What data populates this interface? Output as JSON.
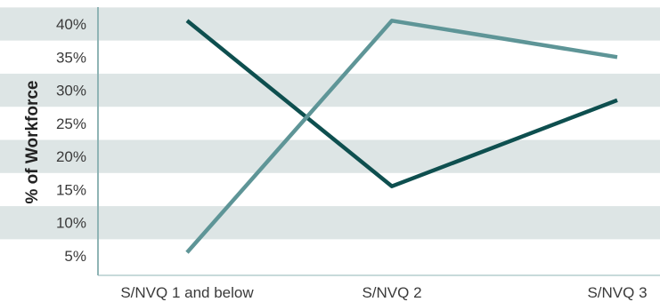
{
  "chart_data": {
    "type": "line",
    "categories": [
      "S/NVQ 1 and below",
      "S/NVQ 2",
      "S/NVQ 3"
    ],
    "series": [
      {
        "name": "",
        "color": "#0e4f4f",
        "values": [
          40.5,
          15.5,
          28.5
        ]
      },
      {
        "name": "",
        "color": "#5e9597",
        "values": [
          5.5,
          40.5,
          35.0
        ]
      }
    ],
    "ylabel": "% of Workforce",
    "xlabel": "",
    "title": "",
    "y_ticks": [
      "5%",
      "10%",
      "15%",
      "20%",
      "25%",
      "30%",
      "35%",
      "40%"
    ],
    "ylim": [
      2.5,
      42.5
    ],
    "grid": "alternating horizontal bands",
    "band_color": "#dde5e5"
  }
}
